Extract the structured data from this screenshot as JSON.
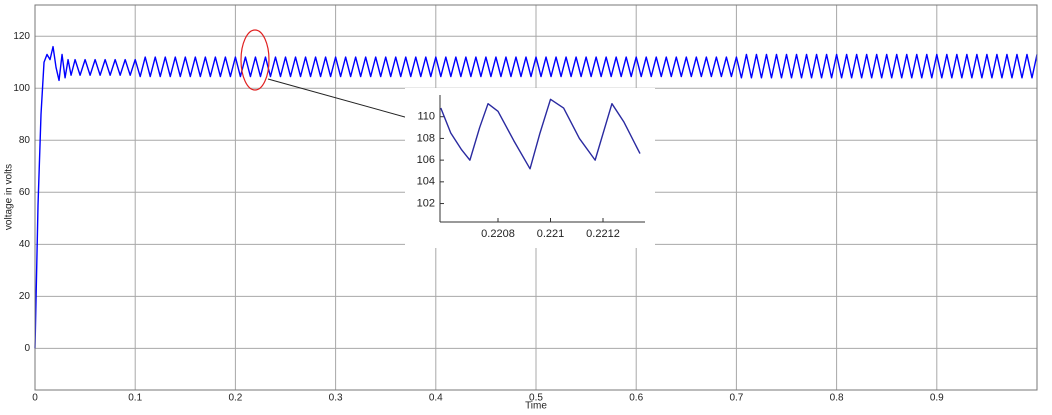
{
  "chart_data": [
    {
      "type": "line",
      "xlabel": "Time",
      "ylabel": "voltage in volts",
      "color": "#0000ff",
      "grid": true,
      "xlim": [
        0,
        1
      ],
      "ylim": [
        -16,
        132
      ],
      "xticks": [
        0,
        0.1,
        0.2,
        0.3,
        0.4,
        0.5,
        0.6,
        0.7,
        0.8,
        0.9
      ],
      "yticks": [
        0,
        20,
        40,
        60,
        80,
        100,
        120
      ],
      "x": [
        0,
        0.003,
        0.006,
        0.009,
        0.012,
        0.015,
        0.018,
        0.021,
        0.024,
        0.027,
        0.03,
        0.033,
        0.036,
        0.04,
        0.045,
        0.05,
        0.055,
        0.06,
        0.065,
        0.07,
        0.075,
        0.08,
        0.085,
        0.09,
        0.095,
        0.1,
        0.105,
        0.11,
        0.115,
        0.12,
        0.125,
        0.13,
        0.135,
        0.14,
        0.145,
        0.15,
        0.155,
        0.16,
        0.165,
        0.17,
        0.175,
        0.18,
        0.185,
        0.19,
        0.195,
        0.2,
        0.205,
        0.21,
        0.215,
        0.22,
        0.225,
        0.23,
        0.235,
        0.24,
        0.245,
        0.25,
        0.255,
        0.26,
        0.265,
        0.27,
        0.275,
        0.28,
        0.285,
        0.29,
        0.295,
        0.3,
        0.305,
        0.31,
        0.315,
        0.32,
        0.325,
        0.33,
        0.335,
        0.34,
        0.345,
        0.35,
        0.355,
        0.36,
        0.365,
        0.37,
        0.375,
        0.38,
        0.385,
        0.39,
        0.395,
        0.4,
        0.405,
        0.41,
        0.415,
        0.42,
        0.425,
        0.43,
        0.435,
        0.44,
        0.445,
        0.45,
        0.455,
        0.46,
        0.465,
        0.47,
        0.475,
        0.48,
        0.485,
        0.49,
        0.495,
        0.5,
        0.505,
        0.51,
        0.515,
        0.52,
        0.525,
        0.53,
        0.535,
        0.54,
        0.545,
        0.55,
        0.555,
        0.56,
        0.565,
        0.57,
        0.575,
        0.58,
        0.585,
        0.59,
        0.595,
        0.6,
        0.605,
        0.61,
        0.615,
        0.62,
        0.625,
        0.63,
        0.635,
        0.64,
        0.645,
        0.65,
        0.655,
        0.66,
        0.665,
        0.67,
        0.675,
        0.68,
        0.685,
        0.69,
        0.695,
        0.7,
        0.705,
        0.71,
        0.715,
        0.72,
        0.725,
        0.73,
        0.735,
        0.74,
        0.745,
        0.75,
        0.755,
        0.76,
        0.765,
        0.77,
        0.775,
        0.78,
        0.785,
        0.79,
        0.795,
        0.8,
        0.805,
        0.81,
        0.815,
        0.82,
        0.825,
        0.83,
        0.835,
        0.84,
        0.845,
        0.85,
        0.855,
        0.86,
        0.865,
        0.87,
        0.875,
        0.88,
        0.885,
        0.89,
        0.895,
        0.9,
        0.905,
        0.91,
        0.915,
        0.92,
        0.925,
        0.93,
        0.935,
        0.94,
        0.945,
        0.95,
        0.955,
        0.96,
        0.965,
        0.97,
        0.975,
        0.98,
        0.985,
        0.99,
        0.995,
        1
      ],
      "values": [
        0,
        55,
        90,
        110,
        113,
        111,
        116,
        108,
        103,
        113,
        104,
        111,
        105,
        111,
        105,
        111,
        105,
        111,
        105,
        111,
        105,
        111,
        105,
        111,
        105,
        111,
        104.5,
        112,
        104.5,
        112,
        104.5,
        112,
        104.5,
        112,
        104.5,
        112,
        104.5,
        112,
        104.5,
        112,
        104.5,
        112,
        104.5,
        112,
        104.5,
        112,
        104.5,
        112,
        104.5,
        112,
        104.5,
        112,
        104.5,
        112,
        104.5,
        112,
        104.5,
        112,
        104.5,
        112,
        104.5,
        112,
        104.5,
        112,
        104.5,
        112,
        104.5,
        112,
        104.5,
        112,
        104.5,
        112,
        104.5,
        112,
        104.5,
        112,
        104.5,
        112,
        104.5,
        112,
        104.5,
        112,
        104.5,
        112,
        104.5,
        112,
        104.5,
        112,
        104.5,
        112,
        104.5,
        112,
        104.5,
        112,
        104.5,
        112,
        104.5,
        112,
        104.5,
        112,
        104.5,
        112,
        104.5,
        112,
        104.5,
        112,
        104.5,
        112,
        104.5,
        112,
        104.5,
        112,
        104.5,
        112,
        104.5,
        112,
        104.5,
        112,
        104.5,
        112,
        104.5,
        112,
        104.5,
        112,
        104.5,
        112,
        104.5,
        112,
        104.5,
        112,
        104.5,
        112,
        104.5,
        112,
        104.5,
        112,
        104.5,
        112,
        104.5,
        112,
        104.5,
        112,
        104.5,
        112,
        104.5,
        112,
        104,
        113,
        104,
        113,
        104,
        113,
        104,
        113,
        104,
        113,
        104,
        113,
        104,
        113,
        104,
        113,
        104,
        113,
        104,
        113,
        104,
        113,
        104,
        113,
        104,
        113,
        104,
        113,
        104,
        113,
        104,
        113,
        104,
        113,
        104,
        113,
        104,
        113,
        104,
        113,
        104,
        113,
        104,
        113,
        104,
        113,
        104,
        113,
        104,
        113,
        104,
        113,
        104,
        113,
        104,
        113,
        104,
        113,
        104,
        113
      ]
    },
    {
      "type": "line",
      "color": "#2a2aa0",
      "grid": false,
      "xlim": [
        0.220579,
        0.22136
      ],
      "ylim": [
        100.3,
        112
      ],
      "xticks": [
        0.2208,
        0.221,
        0.2212
      ],
      "yticks": [
        102,
        104,
        106,
        108,
        110
      ],
      "x": [
        0.220582,
        0.22062,
        0.22066,
        0.220693,
        0.22073,
        0.220762,
        0.2208,
        0.22086,
        0.220922,
        0.22096,
        0.221,
        0.22105,
        0.22111,
        0.22117,
        0.221234,
        0.22128,
        0.221341
      ],
      "values": [
        110.8,
        108.5,
        107,
        106,
        109,
        111.2,
        110.5,
        107.8,
        105.2,
        108.5,
        111.6,
        110.8,
        108,
        106,
        111.2,
        109.5,
        106.6
      ]
    }
  ]
}
